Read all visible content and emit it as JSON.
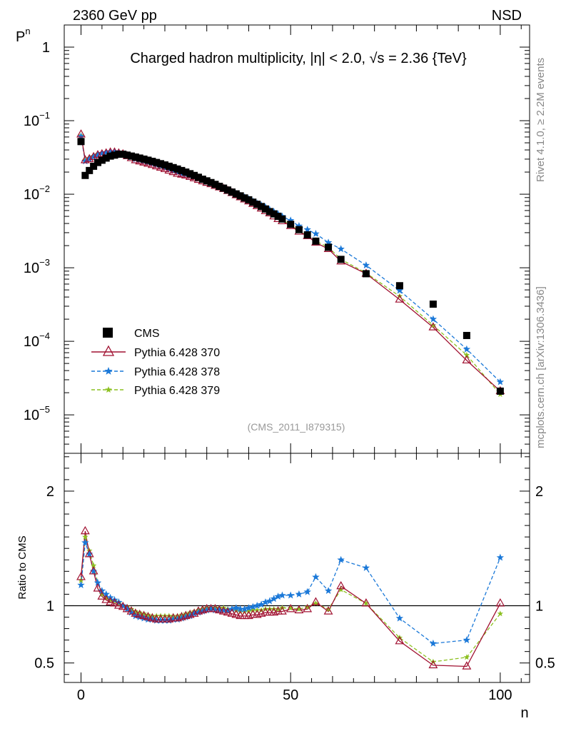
{
  "header": {
    "left": "2360 GeV pp",
    "right": "NSD"
  },
  "title": "Charged hadron multiplicity, |η| < 2.0, √s = 2.36 {TeV}",
  "side_labels": {
    "rivet": "Rivet 4.1.0, ≥ 2.2M events",
    "mcplots": "mcplots.cern.ch [arXiv:1306.3436]"
  },
  "analysis_ref": "(CMS_2011_I879315)",
  "axes": {
    "top_ylabel": "P",
    "top_ylabel_sub": "n",
    "bottom_ylabel": "Ratio to CMS",
    "xlabel": "n",
    "x_ticks": [
      "0",
      "50",
      "100"
    ],
    "top_y_ticks": [
      "1",
      "10",
      "10",
      "10",
      "10",
      "10"
    ],
    "top_y_exp": [
      "",
      "−1",
      "−2",
      "−3",
      "−4",
      "−5"
    ],
    "ratio_ticks": [
      "2",
      "1",
      "0.5"
    ]
  },
  "colors": {
    "cms": "#000000",
    "p370": "#a01030",
    "p378": "#1a78d8",
    "p379": "#8cc020"
  },
  "chart_data": [
    {
      "type": "scatter",
      "panel": "main",
      "yscale": "log",
      "xlim": [
        -4,
        107
      ],
      "ylim": [
        3e-06,
        2
      ],
      "series": [
        {
          "name": "CMS",
          "x": [
            0,
            1,
            2,
            3,
            4,
            5,
            6,
            7,
            8,
            9,
            10,
            11,
            12,
            13,
            14,
            15,
            16,
            17,
            18,
            19,
            20,
            21,
            22,
            23,
            24,
            25,
            26,
            27,
            28,
            29,
            30,
            31,
            32,
            33,
            34,
            35,
            36,
            37,
            38,
            39,
            40,
            41,
            42,
            43,
            44,
            45,
            46,
            47,
            48,
            50,
            52,
            54,
            56,
            59,
            62,
            68,
            76,
            84,
            92,
            100
          ],
          "y": [
            0.052,
            0.018,
            0.021,
            0.024,
            0.027,
            0.029,
            0.031,
            0.033,
            0.034,
            0.035,
            0.035,
            0.034,
            0.033,
            0.032,
            0.031,
            0.03,
            0.029,
            0.028,
            0.027,
            0.026,
            0.025,
            0.024,
            0.023,
            0.022,
            0.021,
            0.02,
            0.019,
            0.018,
            0.017,
            0.016,
            0.0152,
            0.0144,
            0.0136,
            0.0128,
            0.0121,
            0.0114,
            0.0107,
            0.0101,
            0.0095,
            0.0089,
            0.0084,
            0.0078,
            0.0073,
            0.0068,
            0.0063,
            0.0058,
            0.0054,
            0.005,
            0.0046,
            0.0039,
            0.0033,
            0.0028,
            0.0023,
            0.0019,
            0.0013,
            0.00083,
            0.00057,
            0.00032,
            0.00012,
            2.1e-05
          ]
        },
        {
          "name": "Pythia 6.428 370",
          "x": [
            0,
            1,
            2,
            3,
            4,
            5,
            6,
            7,
            8,
            9,
            10,
            11,
            12,
            13,
            14,
            15,
            16,
            17,
            18,
            19,
            20,
            21,
            22,
            23,
            24,
            25,
            26,
            27,
            28,
            29,
            30,
            31,
            32,
            33,
            34,
            35,
            36,
            37,
            38,
            39,
            40,
            41,
            42,
            43,
            44,
            45,
            46,
            47,
            48,
            50,
            52,
            54,
            56,
            59,
            62,
            68,
            76,
            84,
            92,
            100
          ],
          "y": [
            0.065,
            0.029,
            0.03,
            0.032,
            0.034,
            0.035,
            0.036,
            0.037,
            0.037,
            0.036,
            0.035,
            0.033,
            0.031,
            0.029,
            0.028,
            0.027,
            0.026,
            0.025,
            0.024,
            0.023,
            0.022,
            0.021,
            0.02,
            0.019,
            0.0185,
            0.018,
            0.0172,
            0.0165,
            0.0157,
            0.015,
            0.0143,
            0.0137,
            0.013,
            0.0124,
            0.0118,
            0.0111,
            0.0104,
            0.0097,
            0.0091,
            0.0085,
            0.008,
            0.0074,
            0.0069,
            0.0064,
            0.0059,
            0.0055,
            0.005,
            0.0046,
            0.0043,
            0.0037,
            0.0031,
            0.0027,
            0.0022,
            0.0018,
            0.00122,
            0.00083,
            0.00037,
            0.000155,
            5.5e-05,
            2.1e-05
          ]
        },
        {
          "name": "Pythia 6.428 378",
          "x": [
            0,
            1,
            2,
            3,
            4,
            5,
            6,
            7,
            8,
            9,
            10,
            11,
            12,
            13,
            14,
            15,
            16,
            17,
            18,
            19,
            20,
            21,
            22,
            23,
            24,
            25,
            26,
            27,
            28,
            29,
            30,
            31,
            32,
            33,
            34,
            35,
            36,
            37,
            38,
            39,
            40,
            41,
            42,
            43,
            44,
            45,
            46,
            47,
            48,
            50,
            52,
            54,
            56,
            59,
            62,
            68,
            76,
            84,
            92,
            100
          ],
          "y": [
            0.061,
            0.028,
            0.03,
            0.032,
            0.034,
            0.036,
            0.037,
            0.038,
            0.038,
            0.037,
            0.036,
            0.034,
            0.032,
            0.03,
            0.029,
            0.028,
            0.027,
            0.026,
            0.025,
            0.024,
            0.023,
            0.022,
            0.021,
            0.02,
            0.019,
            0.0185,
            0.0177,
            0.017,
            0.0162,
            0.0155,
            0.0148,
            0.014,
            0.0133,
            0.0127,
            0.012,
            0.0114,
            0.0108,
            0.0102,
            0.0096,
            0.0091,
            0.0086,
            0.008,
            0.0075,
            0.0071,
            0.0067,
            0.0062,
            0.0058,
            0.0054,
            0.005,
            0.0044,
            0.0037,
            0.0033,
            0.0029,
            0.0022,
            0.0018,
            0.00108,
            0.00049,
            0.0002,
            7.8e-05,
            2.8e-05
          ]
        },
        {
          "name": "Pythia 6.428 379",
          "x": [
            0,
            1,
            2,
            3,
            4,
            5,
            6,
            7,
            8,
            9,
            10,
            11,
            12,
            13,
            14,
            15,
            16,
            17,
            18,
            19,
            20,
            21,
            22,
            23,
            24,
            25,
            26,
            27,
            28,
            29,
            30,
            31,
            32,
            33,
            34,
            35,
            36,
            37,
            38,
            39,
            40,
            41,
            42,
            43,
            44,
            45,
            46,
            47,
            48,
            50,
            52,
            54,
            56,
            59,
            62,
            68,
            76,
            84,
            92,
            100
          ],
          "y": [
            0.063,
            0.029,
            0.031,
            0.033,
            0.035,
            0.036,
            0.037,
            0.038,
            0.038,
            0.037,
            0.036,
            0.034,
            0.032,
            0.03,
            0.029,
            0.028,
            0.027,
            0.026,
            0.025,
            0.024,
            0.023,
            0.022,
            0.021,
            0.02,
            0.019,
            0.0184,
            0.0176,
            0.0168,
            0.016,
            0.0153,
            0.0146,
            0.0139,
            0.0132,
            0.0126,
            0.012,
            0.0113,
            0.0106,
            0.01,
            0.0094,
            0.0088,
            0.0083,
            0.0077,
            0.0072,
            0.0067,
            0.0062,
            0.0057,
            0.0053,
            0.0049,
            0.0045,
            0.0038,
            0.0032,
            0.0027,
            0.0023,
            0.0019,
            0.0013,
            0.00085,
            0.00041,
            0.000165,
            6.5e-05,
            1.9e-05
          ]
        }
      ]
    },
    {
      "type": "line",
      "panel": "ratio",
      "xlim": [
        -4,
        107
      ],
      "ylim": [
        0.33,
        2.33
      ],
      "series": [
        {
          "name": "Pythia 6.428 370",
          "x": [
            0,
            1,
            2,
            3,
            4,
            5,
            6,
            7,
            8,
            9,
            10,
            11,
            12,
            13,
            14,
            15,
            16,
            17,
            18,
            19,
            20,
            21,
            22,
            23,
            24,
            25,
            26,
            27,
            28,
            29,
            30,
            31,
            32,
            33,
            34,
            35,
            36,
            37,
            38,
            39,
            40,
            41,
            42,
            43,
            44,
            45,
            46,
            47,
            48,
            50,
            52,
            54,
            56,
            59,
            62,
            68,
            76,
            84,
            92,
            100
          ],
          "y": [
            1.25,
            1.65,
            1.45,
            1.3,
            1.15,
            1.08,
            1.05,
            1.03,
            1.02,
            1.0,
            0.99,
            0.97,
            0.95,
            0.93,
            0.92,
            0.91,
            0.9,
            0.89,
            0.88,
            0.88,
            0.88,
            0.88,
            0.89,
            0.89,
            0.9,
            0.91,
            0.92,
            0.93,
            0.95,
            0.96,
            0.97,
            0.97,
            0.97,
            0.96,
            0.95,
            0.94,
            0.93,
            0.92,
            0.91,
            0.91,
            0.91,
            0.92,
            0.92,
            0.93,
            0.94,
            0.94,
            0.94,
            0.95,
            0.95,
            0.97,
            0.96,
            0.97,
            1.03,
            0.95,
            1.17,
            1.02,
            0.69,
            0.48,
            0.47,
            1.02
          ]
        },
        {
          "name": "Pythia 6.428 378",
          "x": [
            0,
            1,
            2,
            3,
            4,
            5,
            6,
            7,
            8,
            9,
            10,
            11,
            12,
            13,
            14,
            15,
            16,
            17,
            18,
            19,
            20,
            21,
            22,
            23,
            24,
            25,
            26,
            27,
            28,
            29,
            30,
            31,
            32,
            33,
            34,
            35,
            36,
            37,
            38,
            39,
            40,
            41,
            42,
            43,
            44,
            45,
            46,
            47,
            48,
            50,
            52,
            54,
            56,
            59,
            62,
            68,
            76,
            84,
            92,
            100
          ],
          "y": [
            1.18,
            1.55,
            1.45,
            1.3,
            1.2,
            1.13,
            1.1,
            1.07,
            1.05,
            1.03,
            1.0,
            0.97,
            0.94,
            0.91,
            0.9,
            0.89,
            0.88,
            0.88,
            0.87,
            0.87,
            0.87,
            0.87,
            0.88,
            0.88,
            0.89,
            0.9,
            0.91,
            0.93,
            0.94,
            0.95,
            0.96,
            0.97,
            0.96,
            0.96,
            0.96,
            0.96,
            0.97,
            0.98,
            0.97,
            0.97,
            0.98,
            0.99,
            1.0,
            1.01,
            1.03,
            1.04,
            1.06,
            1.08,
            1.09,
            1.09,
            1.1,
            1.12,
            1.25,
            1.13,
            1.4,
            1.33,
            0.89,
            0.67,
            0.7,
            1.42
          ]
        },
        {
          "name": "Pythia 6.428 379",
          "x": [
            0,
            1,
            2,
            3,
            4,
            5,
            6,
            7,
            8,
            9,
            10,
            11,
            12,
            13,
            14,
            15,
            16,
            17,
            18,
            19,
            20,
            21,
            22,
            23,
            24,
            25,
            26,
            27,
            28,
            29,
            30,
            31,
            32,
            33,
            34,
            35,
            36,
            37,
            38,
            39,
            40,
            41,
            42,
            43,
            44,
            45,
            46,
            47,
            48,
            50,
            52,
            54,
            56,
            59,
            62,
            68,
            76,
            84,
            92,
            100
          ],
          "y": [
            1.22,
            1.6,
            1.48,
            1.35,
            1.2,
            1.1,
            1.07,
            1.05,
            1.04,
            1.02,
            1.0,
            0.99,
            0.97,
            0.95,
            0.94,
            0.93,
            0.92,
            0.91,
            0.91,
            0.91,
            0.91,
            0.91,
            0.91,
            0.91,
            0.92,
            0.93,
            0.94,
            0.95,
            0.96,
            0.97,
            0.98,
            0.98,
            0.98,
            0.98,
            0.98,
            0.97,
            0.97,
            0.96,
            0.95,
            0.95,
            0.95,
            0.96,
            0.96,
            0.96,
            0.97,
            0.97,
            0.97,
            0.97,
            0.98,
            0.98,
            0.97,
            0.99,
            1.02,
            0.97,
            1.14,
            1.02,
            0.72,
            0.51,
            0.55,
            0.93
          ]
        }
      ]
    }
  ]
}
